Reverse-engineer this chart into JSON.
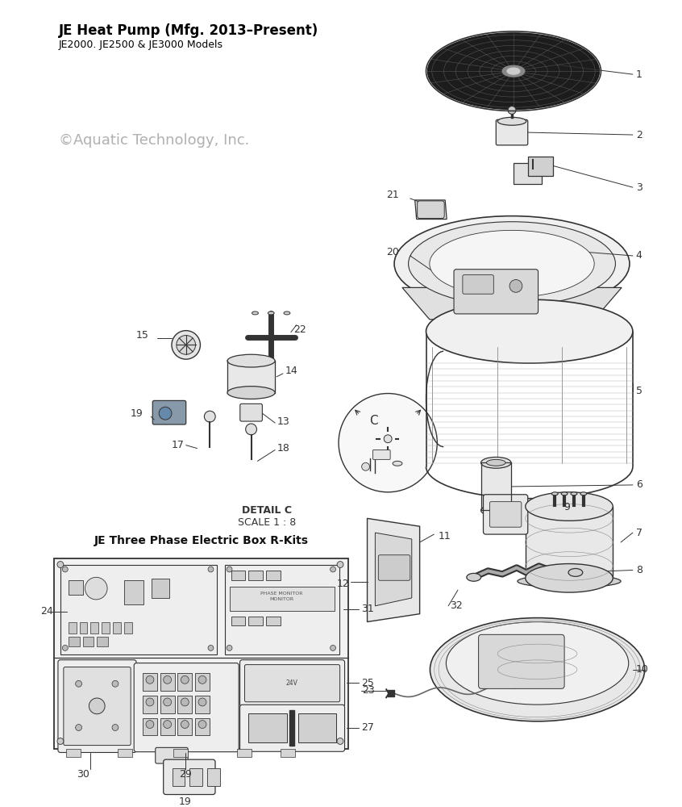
{
  "title_bold": "JE Heat Pump (Mfg. 2013–Present)",
  "title_sub": "JE2000. JE2500 & JE3000 Models",
  "copyright": "©Aquatic Technology, Inc.",
  "background_color": "#ffffff",
  "title_color": "#000000",
  "subtitle_color": "#000000",
  "copyright_color": "#b0b0b0",
  "line_color": "#333333",
  "label_color": "#333333"
}
